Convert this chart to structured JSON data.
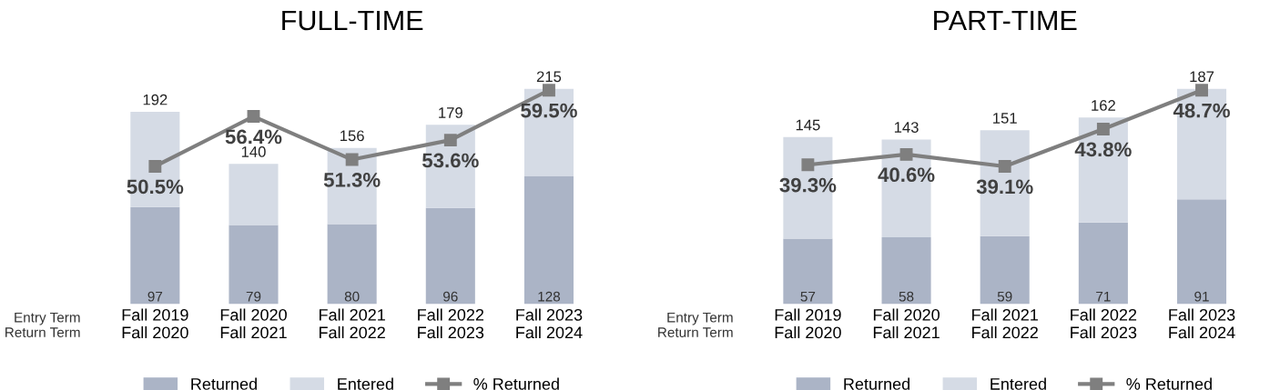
{
  "chart_data": [
    {
      "type": "bar",
      "title": "FULL-TIME",
      "stacked": true,
      "legend": "bottom",
      "categories": [
        "Fall 2019\nFall 2020",
        "Fall 2020\nFall 2021",
        "Fall 2021\nFall 2022",
        "Fall 2022\nFall 2023",
        "Fall 2023\nFall 2024"
      ],
      "series": [
        {
          "name": "Returned",
          "color": "#abb4c6",
          "values": [
            97,
            79,
            80,
            96,
            128
          ],
          "value_labels": [
            "97",
            "79",
            "80",
            "96",
            "128"
          ]
        },
        {
          "name": "Entered",
          "color": "#d5dbe5",
          "values": [
            95,
            61,
            76,
            83,
            87
          ]
        },
        {
          "name": "% Returned",
          "type": "line",
          "axis": "y2",
          "color": "#7f7f7f",
          "marker": "square",
          "values": [
            50.5,
            56.4,
            51.3,
            53.6,
            59.5
          ],
          "value_labels": [
            "50.5%",
            "56.4%",
            "51.3%",
            "53.6%",
            "59.5%"
          ]
        }
      ],
      "totals": [
        "192",
        "140",
        "156",
        "179",
        "215"
      ],
      "annotations": [
        "Entry Term\nReturn Term"
      ]
    },
    {
      "type": "bar",
      "title": "PART-TIME",
      "stacked": true,
      "legend": "bottom",
      "categories": [
        "Fall 2019\nFall 2020",
        "Fall 2020\nFall 2021",
        "Fall 2021\nFall 2022",
        "Fall 2022\nFall 2023",
        "Fall 2023\nFall 2024"
      ],
      "series": [
        {
          "name": "Returned",
          "color": "#abb4c6",
          "values": [
            57,
            58,
            59,
            71,
            91
          ],
          "value_labels": [
            "57",
            "58",
            "59",
            "71",
            "91"
          ]
        },
        {
          "name": "Entered",
          "color": "#d5dbe5",
          "values": [
            88,
            85,
            92,
            91,
            96
          ]
        },
        {
          "name": "% Returned",
          "type": "line",
          "axis": "y2",
          "color": "#7f7f7f",
          "marker": "square",
          "values": [
            39.3,
            40.6,
            39.1,
            43.8,
            48.7
          ],
          "value_labels": [
            "39.3%",
            "40.6%",
            "39.1%",
            "43.8%",
            "48.7%"
          ]
        }
      ],
      "totals": [
        "145",
        "143",
        "151",
        "162",
        "187"
      ],
      "annotations": [
        "Entry Term\nReturn Term"
      ]
    }
  ]
}
